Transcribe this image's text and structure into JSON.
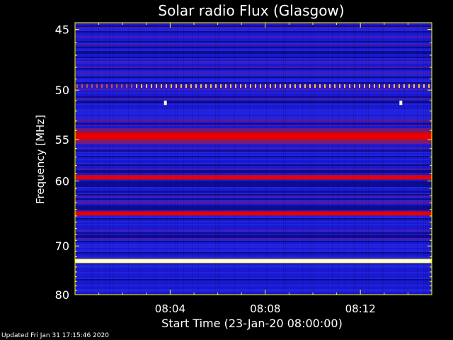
{
  "chart_data": {
    "type": "heatmap",
    "title": "Solar radio Flux (Glasgow)",
    "xlabel": "Start Time (23-Jan-20 08:00:00)",
    "ylabel": "Frequency [MHz]",
    "x_unit": "minutes after 08:00",
    "xlim": [
      0,
      15
    ],
    "ylim": [
      80,
      44.5
    ],
    "y_scale": "reciprocal",
    "x_ticks": [
      {
        "value": 4,
        "label": "08:04"
      },
      {
        "value": 8,
        "label": "08:08"
      },
      {
        "value": 12,
        "label": "08:12"
      }
    ],
    "y_ticks": [
      45,
      50,
      55,
      60,
      70,
      80
    ],
    "bands": [
      {
        "freq": 49.6,
        "intensity": "orange-dashed"
      },
      {
        "freq": 54.6,
        "intensity": "red"
      },
      {
        "freq": 59.5,
        "intensity": "red"
      },
      {
        "freq": 64.6,
        "intensity": "red"
      },
      {
        "freq": 72.8,
        "intensity": "yellow-white"
      }
    ],
    "spots": [
      {
        "x": 3.8,
        "freq": 51.2
      },
      {
        "x": 13.7,
        "freq": 51.2
      }
    ],
    "colors": {
      "background": "#000000",
      "base": "#1a1ad0",
      "dark": "#0b0b80",
      "mid": "#5a1aa0",
      "red": "#e80000",
      "bright": "#ff3a2a",
      "yellow": "#ffff80",
      "axis": "#ffff00"
    }
  },
  "footer": "Updated Fri Jan 31 17:15:46 2020"
}
